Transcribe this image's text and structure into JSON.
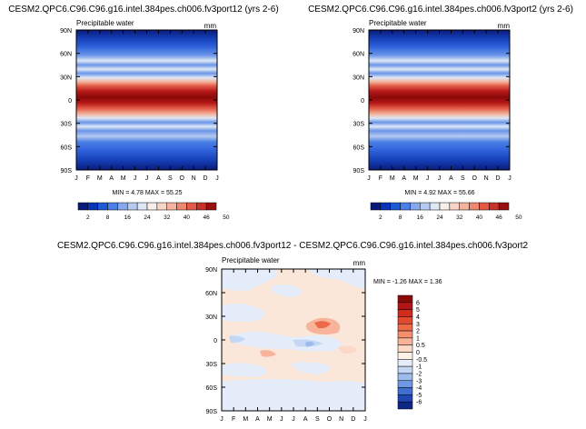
{
  "chart_data": [
    {
      "type": "heatmap",
      "title": "CESM2.QPC6.C96.C96.g16.intel.384pes.ch006.fv3port12 (yrs 2-6)",
      "subtitle_left": "Precipitable water",
      "units": "mm",
      "x_ticks": [
        "J",
        "F",
        "M",
        "A",
        "M",
        "J",
        "J",
        "A",
        "S",
        "O",
        "N",
        "D",
        "J"
      ],
      "y_ticks": [
        "90N",
        "60N",
        "30N",
        "0",
        "30S",
        "60S",
        "90S"
      ],
      "y_range": [
        -90,
        90
      ],
      "stats_text": "MIN =   4.78 MAX =  55.25",
      "min": 4.78,
      "max": 55.25,
      "colorbar_labels": [
        "2",
        "8",
        "16",
        "24",
        "32",
        "40",
        "46",
        "50"
      ],
      "colorbar_colors": [
        "#0a1a7a",
        "#0a34b6",
        "#1f5ad6",
        "#4a7fe6",
        "#86a8ee",
        "#b5c9f2",
        "#dfe8f6",
        "#f7efe8",
        "#f7d6c8",
        "#f4b39c",
        "#ef8870",
        "#e35a47",
        "#c8302a",
        "#980f0f"
      ]
    },
    {
      "type": "heatmap",
      "title": "CESM2.QPC6.C96.C96.g16.intel.384pes.ch006.fv3port2 (yrs 2-6)",
      "subtitle_left": "Precipitable water",
      "units": "mm",
      "x_ticks": [
        "J",
        "F",
        "M",
        "A",
        "M",
        "J",
        "J",
        "A",
        "S",
        "O",
        "N",
        "D",
        "J"
      ],
      "y_ticks": [
        "90N",
        "60N",
        "30N",
        "0",
        "30S",
        "60S",
        "90S"
      ],
      "y_range": [
        -90,
        90
      ],
      "stats_text": "MIN =   4.92 MAX =  55.66",
      "min": 4.92,
      "max": 55.66,
      "colorbar_labels": [
        "2",
        "8",
        "16",
        "24",
        "32",
        "40",
        "46",
        "50"
      ],
      "colorbar_colors": [
        "#0a1a7a",
        "#0a34b6",
        "#1f5ad6",
        "#4a7fe6",
        "#86a8ee",
        "#b5c9f2",
        "#dfe8f6",
        "#f7efe8",
        "#f7d6c8",
        "#f4b39c",
        "#ef8870",
        "#e35a47",
        "#c8302a",
        "#980f0f"
      ]
    },
    {
      "type": "heatmap",
      "title": "CESM2.QPC6.C96.C96.g16.intel.384pes.ch006.fv3port12 - CESM2.QPC6.C96.C96.g16.intel.384pes.ch006.fv3port2",
      "subtitle_left": "Precipitable water",
      "units": "mm",
      "x_ticks": [
        "J",
        "F",
        "M",
        "A",
        "M",
        "J",
        "J",
        "A",
        "S",
        "O",
        "N",
        "D",
        "J"
      ],
      "y_ticks": [
        "90N",
        "60N",
        "30N",
        "0",
        "30S",
        "60S",
        "90S"
      ],
      "y_range": [
        -90,
        90
      ],
      "stats_text": "MIN = -1.26 MAX =   1.36",
      "min": -1.26,
      "max": 1.36,
      "colorbar_labels": [
        "6",
        "5",
        "4",
        "3",
        "2",
        "1",
        "0.5",
        "0",
        "-0.5",
        "-1",
        "-2",
        "-3",
        "-4",
        "-5",
        "-6"
      ],
      "colorbar_colors": [
        "#8b0a0a",
        "#b31616",
        "#d12b1f",
        "#e2492e",
        "#ec6a48",
        "#f38f6d",
        "#f8b49a",
        "#fbd8c7",
        "#fdf1e6",
        "#e4edf9",
        "#c3d6f4",
        "#9cbbee",
        "#6f97e3",
        "#3f6dd0",
        "#1f47b2",
        "#0c2687"
      ]
    }
  ]
}
